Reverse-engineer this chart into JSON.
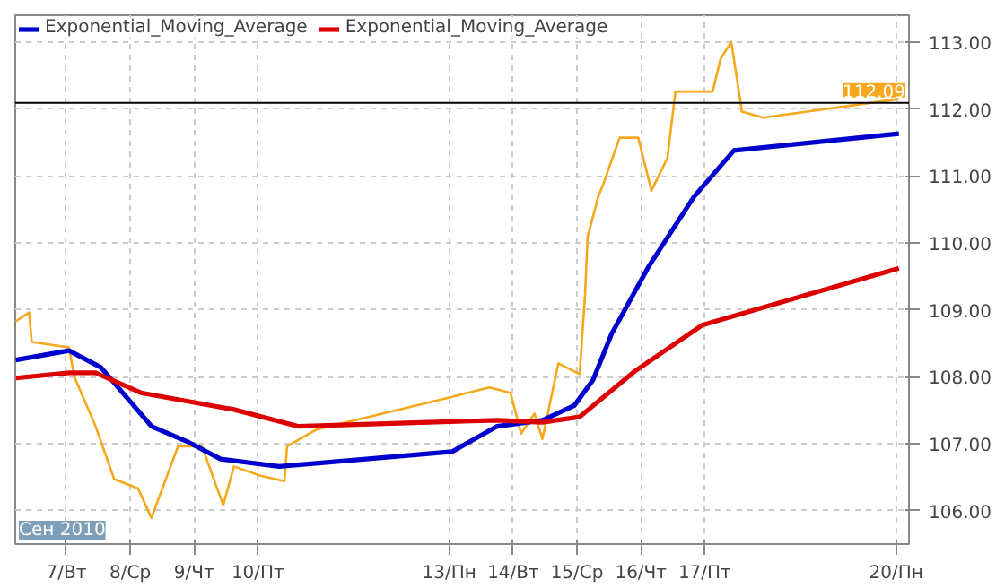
{
  "chart_data": {
    "type": "line",
    "xlim": [
      "2010-09-06T04:48",
      "2010-09-20T04:48"
    ],
    "xticks": [
      {
        "value": "2010-09-07",
        "label": "7/Вт"
      },
      {
        "value": "2010-09-08",
        "label": "8/Ср"
      },
      {
        "value": "2010-09-09",
        "label": "9/Чт"
      },
      {
        "value": "2010-09-10",
        "label": "10/Пт"
      },
      {
        "value": "2010-09-13",
        "label": "13/Пн"
      },
      {
        "value": "2010-09-14",
        "label": "14/Вт"
      },
      {
        "value": "2010-09-15",
        "label": "15/Ср"
      },
      {
        "value": "2010-09-16",
        "label": "16/Чт"
      },
      {
        "value": "2010-09-17",
        "label": "17/Пт"
      },
      {
        "value": "2010-09-20",
        "label": "20/Пн"
      }
    ],
    "ylim": [
      105.5,
      113.4
    ],
    "yticks": [
      {
        "value": 106,
        "label": "106.00"
      },
      {
        "value": 107,
        "label": "107.00"
      },
      {
        "value": 108,
        "label": "108.00"
      },
      {
        "value": 109,
        "label": "109.00"
      },
      {
        "value": 110,
        "label": "110.00"
      },
      {
        "value": 111,
        "label": "111.00"
      },
      {
        "value": 112,
        "label": "112.00"
      },
      {
        "value": 113,
        "label": "113.00"
      }
    ],
    "series": [
      {
        "color": "#f5a81c",
        "x": [
          "2010-09-06T05:00",
          "2010-09-06T10:00",
          "2010-09-06T11:00",
          "2010-09-07T01:00",
          "2010-09-07T03:00",
          "2010-09-07T11:00",
          "2010-09-07T18:00",
          "2010-09-08T03:00",
          "2010-09-08T08:00",
          "2010-09-08T18:00",
          "2010-09-09T03:00",
          "2010-09-09T11:00",
          "2010-09-09T15:00",
          "2010-09-10T01:00",
          "2010-09-10T10:00",
          "2010-09-10T11:00",
          "2010-09-10T22:00",
          "2010-09-13T01:00",
          "2010-09-13T15:00",
          "2010-09-13T23:00",
          "2010-09-14T03:00",
          "2010-09-14T08:00",
          "2010-09-14T11:00",
          "2010-09-14T17:00",
          "2010-09-15T01:00",
          "2010-09-15T03:00",
          "2010-09-15T04:00",
          "2010-09-15T08:00",
          "2010-09-15T10:00",
          "2010-09-15T16:00",
          "2010-09-15T23:00",
          "2010-09-16T04:00",
          "2010-09-16T10:00",
          "2010-09-16T13:00",
          "2010-09-17T03:00",
          "2010-09-17T06:00",
          "2010-09-17T10:00",
          "2010-09-17T14:00",
          "2010-09-17T22:00",
          "2010-09-20T01:00"
        ],
        "values": [
          108.83,
          108.96,
          108.52,
          108.44,
          108.0,
          107.26,
          106.47,
          106.33,
          105.89,
          106.96,
          106.96,
          106.08,
          106.66,
          106.52,
          106.44,
          106.96,
          107.21,
          107.7,
          107.84,
          107.76,
          107.15,
          107.45,
          107.07,
          108.2,
          108.04,
          109.21,
          110.09,
          110.69,
          110.89,
          111.57,
          111.57,
          110.78,
          111.27,
          112.26,
          112.26,
          112.75,
          113.0,
          111.96,
          111.87,
          112.15
        ]
      },
      {
        "name": "Exponential_Moving_Average",
        "color": "#0000cc",
        "x": [
          "2010-09-06T05:00",
          "2010-09-07T01:00",
          "2010-09-07T13:00",
          "2010-09-08T08:00",
          "2010-09-08T22:00",
          "2010-09-09T10:00",
          "2010-09-10T08:00",
          "2010-09-13T01:00",
          "2010-09-13T18:00",
          "2010-09-14T11:00",
          "2010-09-14T23:00",
          "2010-09-15T06:00",
          "2010-09-15T13:00",
          "2010-09-16T03:00",
          "2010-09-16T20:00",
          "2010-09-17T11:00",
          "2010-09-20T01:00"
        ],
        "values": [
          108.25,
          108.39,
          108.14,
          107.26,
          107.02,
          106.77,
          106.66,
          106.88,
          107.26,
          107.35,
          107.57,
          107.95,
          108.64,
          109.65,
          110.69,
          111.38,
          111.63
        ]
      },
      {
        "name": "Exponential_Moving_Average",
        "color": "#dd0000",
        "x": [
          "2010-09-06T05:00",
          "2010-09-07T01:00",
          "2010-09-07T11:00",
          "2010-09-08T04:00",
          "2010-09-09T15:00",
          "2010-09-10T15:00",
          "2010-09-13T18:00",
          "2010-09-14T11:00",
          "2010-09-15T01:00",
          "2010-09-15T22:00",
          "2010-09-16T23:00",
          "2010-09-20T01:00"
        ],
        "values": [
          107.98,
          108.06,
          108.06,
          107.76,
          107.51,
          107.26,
          107.35,
          107.32,
          107.4,
          108.09,
          108.77,
          109.62
        ]
      }
    ],
    "ref_lines": [
      {
        "axis": "y",
        "value": 112.09,
        "label": "112.09",
        "color": "#000000"
      }
    ],
    "annotations": [
      "Сен 2010"
    ],
    "grid": true,
    "legend": "top left",
    "marker": "none",
    "line_style": "solid"
  }
}
